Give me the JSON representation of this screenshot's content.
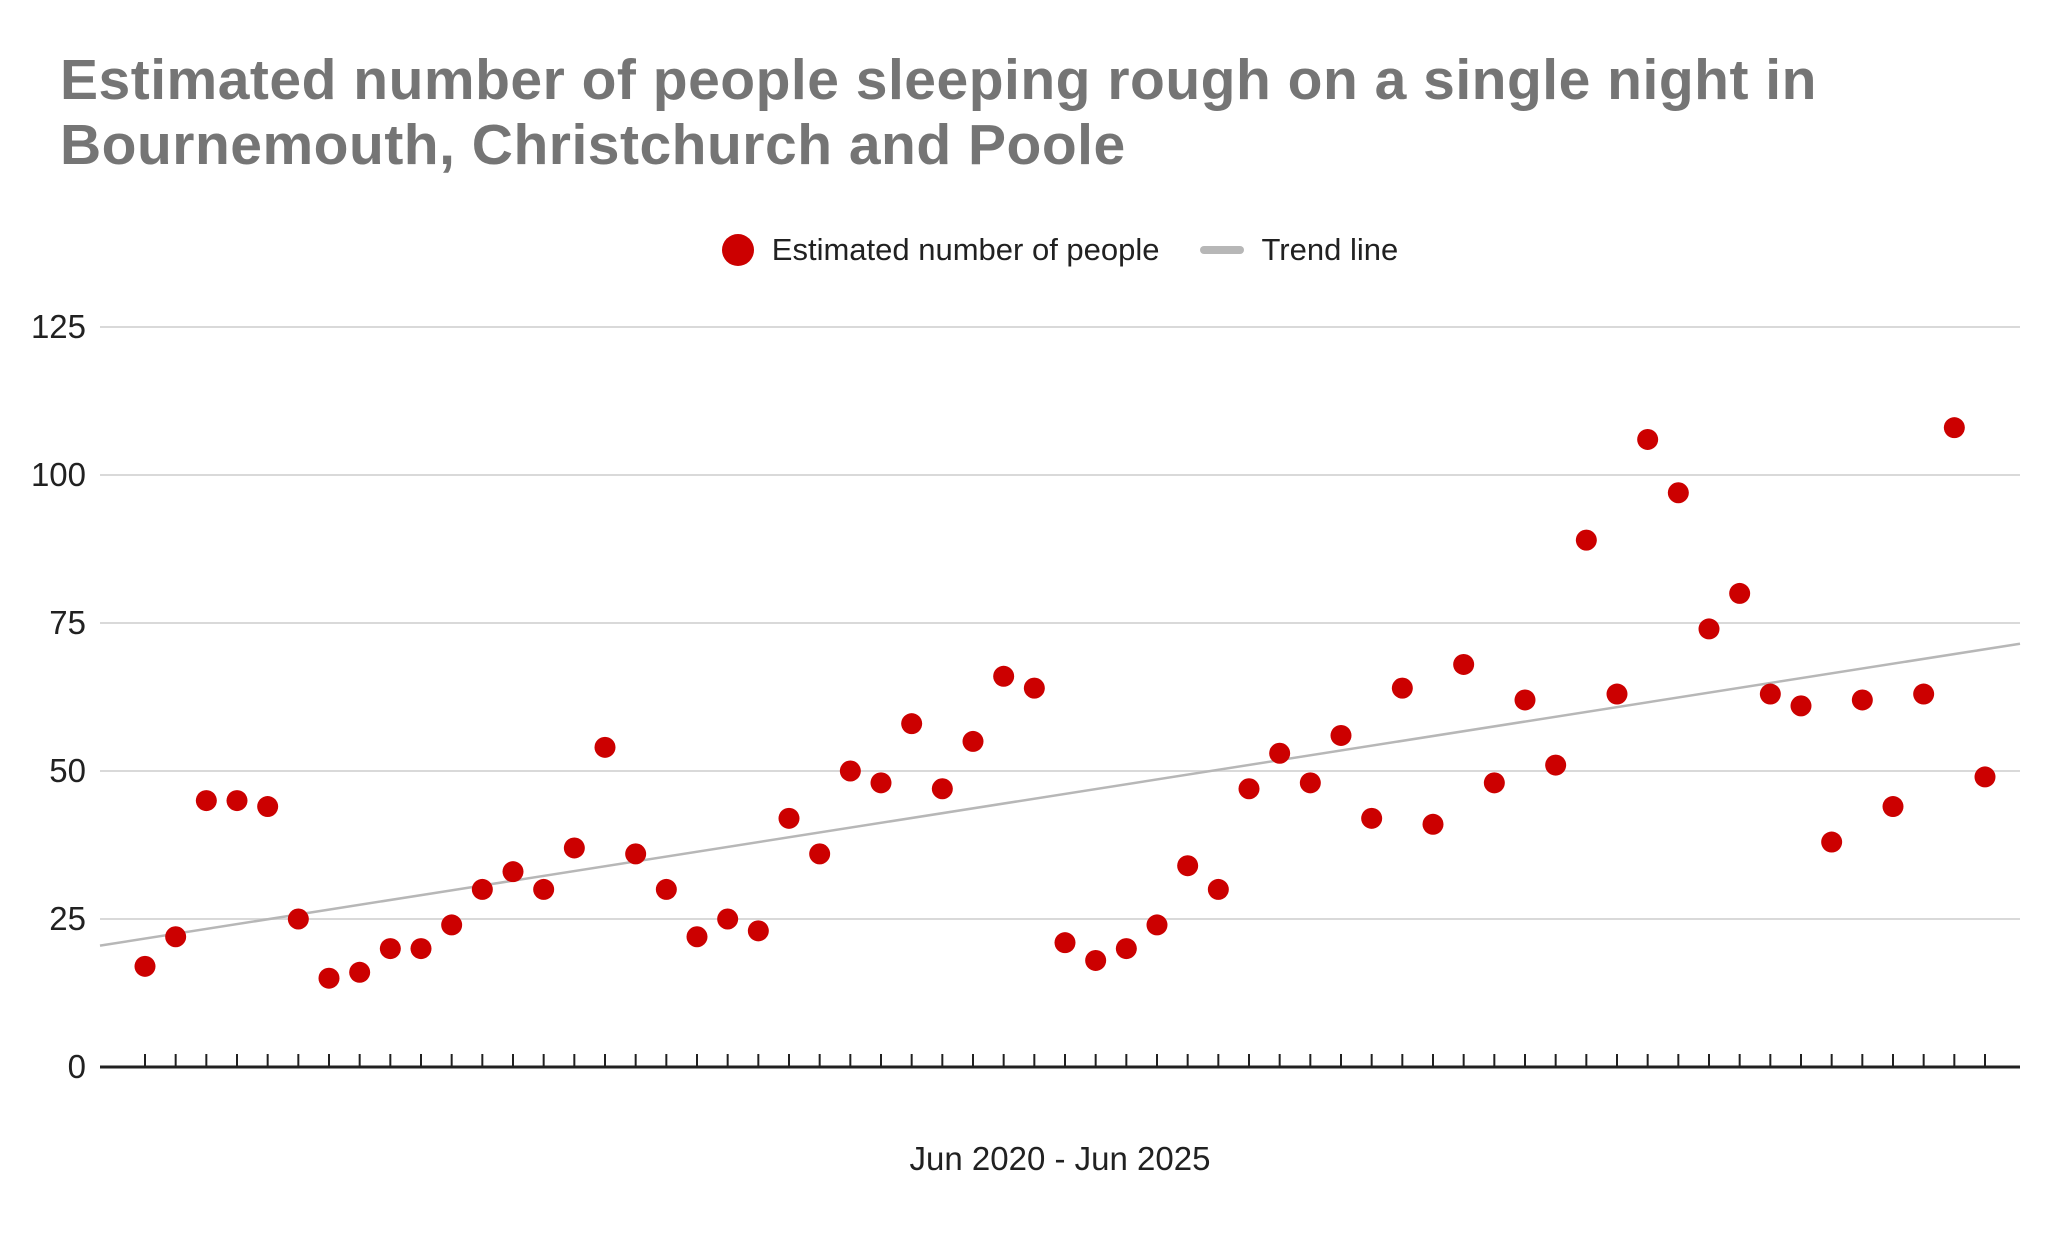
{
  "title": {
    "line1": "Estimated number of people sleeping rough on a single night in",
    "line2": "Bournemouth, Christchurch and Poole"
  },
  "legend": {
    "items": [
      {
        "label": "Estimated number of people",
        "marker": "dot",
        "color": "#CC0000"
      },
      {
        "label": "Trend line",
        "marker": "dash",
        "color": "#B7B7B7"
      }
    ]
  },
  "chart_data": {
    "type": "scatter",
    "title": "Estimated number of people sleeping rough on a single night in Bournemouth, Christchurch and Poole",
    "xlabel": "Jun 2020 - Jun 2025",
    "ylabel": "",
    "x_start": "Jun 2020",
    "x_end": "Jun 2025",
    "x_interval": "monthly",
    "n_points": 61,
    "y_ticks": [
      0,
      25,
      50,
      75,
      100,
      125
    ],
    "ylim": [
      0,
      125
    ],
    "grid": "horizontal-only",
    "legend_position": "top-center",
    "series": [
      {
        "name": "Estimated number of people",
        "type": "points",
        "color": "#CC0000",
        "values": [
          17,
          22,
          45,
          45,
          44,
          25,
          15,
          16,
          20,
          20,
          24,
          30,
          33,
          30,
          37,
          54,
          36,
          30,
          22,
          25,
          23,
          42,
          36,
          50,
          48,
          58,
          47,
          55,
          66,
          64,
          21,
          18,
          20,
          24,
          34,
          30,
          47,
          53,
          48,
          56,
          42,
          64,
          41,
          68,
          48,
          62,
          51,
          89,
          63,
          106,
          97,
          74,
          80,
          63,
          61,
          38,
          62,
          44,
          63,
          108,
          49
        ]
      },
      {
        "name": "Trend line",
        "type": "trend",
        "color": "#B7B7B7",
        "start_value": 20.5,
        "end_value": 71.5
      }
    ],
    "colors": {
      "points": "#CC0000",
      "trend_line": "#B7B7B7",
      "gridline": "#D9D9D9",
      "axis_line": "#212121",
      "title_text": "#757575",
      "label_text": "#212121"
    }
  }
}
